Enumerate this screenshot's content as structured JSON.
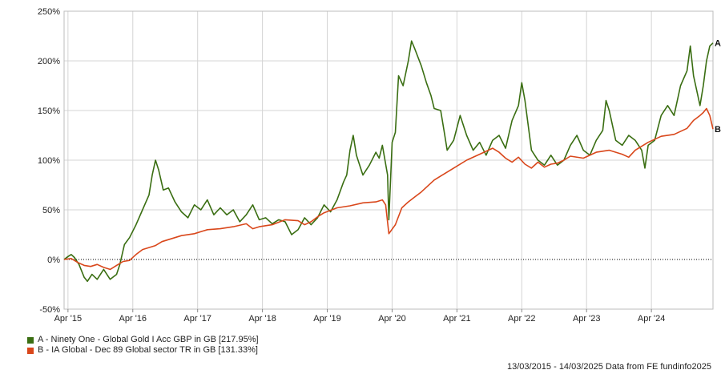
{
  "chart_data": {
    "type": "line",
    "ylim": [
      -50,
      250
    ],
    "y_ticks": [
      "250%",
      "200%",
      "150%",
      "100%",
      "50%",
      "0%",
      "-50%"
    ],
    "y_tick_values": [
      250,
      200,
      150,
      100,
      50,
      0,
      -50
    ],
    "x_ticks": [
      "Apr '15",
      "Apr '16",
      "Apr '17",
      "Apr '18",
      "Apr '19",
      "Apr '20",
      "Apr '21",
      "Apr '22",
      "Apr '23",
      "Apr '24"
    ],
    "x_tick_values": [
      2015.25,
      2016.25,
      2017.25,
      2018.25,
      2019.25,
      2020.25,
      2021.25,
      2022.25,
      2023.25,
      2024.25
    ],
    "xlim": [
      2015.19,
      2025.2
    ],
    "grid": true,
    "legend_position": "bottom-left",
    "series": [
      {
        "name": "A - Ninety One - Global Gold I Acc GBP in GB [217.95%]",
        "end_label": "A",
        "color": "#3a6e12",
        "points": [
          [
            2015.19,
            0
          ],
          [
            2015.25,
            3
          ],
          [
            2015.3,
            5
          ],
          [
            2015.35,
            2
          ],
          [
            2015.42,
            -5
          ],
          [
            2015.5,
            -18
          ],
          [
            2015.55,
            -22
          ],
          [
            2015.62,
            -15
          ],
          [
            2015.7,
            -20
          ],
          [
            2015.8,
            -10
          ],
          [
            2015.9,
            -20
          ],
          [
            2016.0,
            -15
          ],
          [
            2016.05,
            -5
          ],
          [
            2016.12,
            15
          ],
          [
            2016.2,
            22
          ],
          [
            2016.3,
            35
          ],
          [
            2016.4,
            50
          ],
          [
            2016.5,
            65
          ],
          [
            2016.55,
            85
          ],
          [
            2016.6,
            100
          ],
          [
            2016.65,
            90
          ],
          [
            2016.72,
            70
          ],
          [
            2016.8,
            72
          ],
          [
            2016.9,
            58
          ],
          [
            2017.0,
            48
          ],
          [
            2017.1,
            42
          ],
          [
            2017.2,
            55
          ],
          [
            2017.3,
            50
          ],
          [
            2017.4,
            60
          ],
          [
            2017.5,
            45
          ],
          [
            2017.6,
            52
          ],
          [
            2017.7,
            45
          ],
          [
            2017.8,
            50
          ],
          [
            2017.9,
            38
          ],
          [
            2018.0,
            45
          ],
          [
            2018.1,
            55
          ],
          [
            2018.2,
            40
          ],
          [
            2018.3,
            42
          ],
          [
            2018.4,
            36
          ],
          [
            2018.5,
            40
          ],
          [
            2018.6,
            38
          ],
          [
            2018.7,
            25
          ],
          [
            2018.8,
            30
          ],
          [
            2018.9,
            42
          ],
          [
            2019.0,
            35
          ],
          [
            2019.1,
            42
          ],
          [
            2019.2,
            55
          ],
          [
            2019.3,
            48
          ],
          [
            2019.4,
            60
          ],
          [
            2019.5,
            78
          ],
          [
            2019.55,
            85
          ],
          [
            2019.6,
            110
          ],
          [
            2019.65,
            125
          ],
          [
            2019.7,
            105
          ],
          [
            2019.8,
            85
          ],
          [
            2019.9,
            95
          ],
          [
            2020.0,
            108
          ],
          [
            2020.05,
            102
          ],
          [
            2020.1,
            115
          ],
          [
            2020.18,
            85
          ],
          [
            2020.2,
            40
          ],
          [
            2020.25,
            118
          ],
          [
            2020.3,
            128
          ],
          [
            2020.35,
            185
          ],
          [
            2020.42,
            175
          ],
          [
            2020.5,
            200
          ],
          [
            2020.55,
            220
          ],
          [
            2020.6,
            212
          ],
          [
            2020.7,
            195
          ],
          [
            2020.78,
            178
          ],
          [
            2020.85,
            165
          ],
          [
            2020.9,
            152
          ],
          [
            2021.0,
            150
          ],
          [
            2021.05,
            130
          ],
          [
            2021.1,
            110
          ],
          [
            2021.2,
            120
          ],
          [
            2021.3,
            145
          ],
          [
            2021.4,
            125
          ],
          [
            2021.5,
            110
          ],
          [
            2021.6,
            118
          ],
          [
            2021.7,
            105
          ],
          [
            2021.8,
            120
          ],
          [
            2021.9,
            125
          ],
          [
            2022.0,
            112
          ],
          [
            2022.1,
            140
          ],
          [
            2022.2,
            155
          ],
          [
            2022.25,
            178
          ],
          [
            2022.3,
            160
          ],
          [
            2022.4,
            110
          ],
          [
            2022.5,
            100
          ],
          [
            2022.6,
            95
          ],
          [
            2022.7,
            105
          ],
          [
            2022.8,
            95
          ],
          [
            2022.9,
            100
          ],
          [
            2023.0,
            115
          ],
          [
            2023.1,
            125
          ],
          [
            2023.2,
            110
          ],
          [
            2023.3,
            105
          ],
          [
            2023.4,
            120
          ],
          [
            2023.5,
            130
          ],
          [
            2023.55,
            160
          ],
          [
            2023.6,
            150
          ],
          [
            2023.7,
            120
          ],
          [
            2023.8,
            115
          ],
          [
            2023.9,
            125
          ],
          [
            2024.0,
            120
          ],
          [
            2024.1,
            110
          ],
          [
            2024.15,
            92
          ],
          [
            2024.2,
            115
          ],
          [
            2024.3,
            120
          ],
          [
            2024.4,
            145
          ],
          [
            2024.5,
            155
          ],
          [
            2024.6,
            145
          ],
          [
            2024.7,
            175
          ],
          [
            2024.8,
            190
          ],
          [
            2024.85,
            215
          ],
          [
            2024.9,
            185
          ],
          [
            2025.0,
            155
          ],
          [
            2025.05,
            175
          ],
          [
            2025.1,
            200
          ],
          [
            2025.15,
            215
          ],
          [
            2025.2,
            217.95
          ]
        ]
      },
      {
        "name": "B - IA Global - Dec 89 Global sector TR in GB [131.33%]",
        "end_label": "B",
        "color": "#d9471b",
        "points": [
          [
            2015.19,
            0
          ],
          [
            2015.3,
            1
          ],
          [
            2015.4,
            -3
          ],
          [
            2015.5,
            -6
          ],
          [
            2015.6,
            -7
          ],
          [
            2015.7,
            -5
          ],
          [
            2015.8,
            -8
          ],
          [
            2015.9,
            -10
          ],
          [
            2016.0,
            -6
          ],
          [
            2016.1,
            -2
          ],
          [
            2016.2,
            -1
          ],
          [
            2016.3,
            5
          ],
          [
            2016.4,
            10
          ],
          [
            2016.5,
            12
          ],
          [
            2016.6,
            14
          ],
          [
            2016.7,
            18
          ],
          [
            2016.8,
            20
          ],
          [
            2016.9,
            22
          ],
          [
            2017.0,
            24
          ],
          [
            2017.2,
            26
          ],
          [
            2017.4,
            30
          ],
          [
            2017.6,
            31
          ],
          [
            2017.8,
            33
          ],
          [
            2018.0,
            36
          ],
          [
            2018.1,
            31
          ],
          [
            2018.2,
            33
          ],
          [
            2018.4,
            35
          ],
          [
            2018.6,
            40
          ],
          [
            2018.8,
            39
          ],
          [
            2018.9,
            35
          ],
          [
            2019.0,
            38
          ],
          [
            2019.1,
            43
          ],
          [
            2019.2,
            47
          ],
          [
            2019.4,
            52
          ],
          [
            2019.6,
            54
          ],
          [
            2019.8,
            57
          ],
          [
            2020.0,
            58
          ],
          [
            2020.1,
            60
          ],
          [
            2020.15,
            55
          ],
          [
            2020.2,
            26
          ],
          [
            2020.3,
            35
          ],
          [
            2020.4,
            52
          ],
          [
            2020.5,
            58
          ],
          [
            2020.6,
            63
          ],
          [
            2020.7,
            68
          ],
          [
            2020.8,
            74
          ],
          [
            2020.9,
            80
          ],
          [
            2021.0,
            84
          ],
          [
            2021.2,
            92
          ],
          [
            2021.4,
            100
          ],
          [
            2021.6,
            106
          ],
          [
            2021.8,
            112
          ],
          [
            2021.9,
            108
          ],
          [
            2022.0,
            102
          ],
          [
            2022.1,
            98
          ],
          [
            2022.2,
            103
          ],
          [
            2022.3,
            96
          ],
          [
            2022.4,
            92
          ],
          [
            2022.5,
            98
          ],
          [
            2022.6,
            93
          ],
          [
            2022.7,
            96
          ],
          [
            2022.8,
            97
          ],
          [
            2022.9,
            100
          ],
          [
            2023.0,
            104
          ],
          [
            2023.2,
            102
          ],
          [
            2023.4,
            108
          ],
          [
            2023.6,
            110
          ],
          [
            2023.8,
            106
          ],
          [
            2023.9,
            103
          ],
          [
            2024.0,
            110
          ],
          [
            2024.2,
            118
          ],
          [
            2024.4,
            124
          ],
          [
            2024.6,
            126
          ],
          [
            2024.8,
            132
          ],
          [
            2024.9,
            140
          ],
          [
            2025.0,
            145
          ],
          [
            2025.05,
            148
          ],
          [
            2025.1,
            152
          ],
          [
            2025.15,
            145
          ],
          [
            2025.2,
            131.33
          ]
        ]
      }
    ],
    "footer": "13/03/2015 - 14/03/2025 Data from FE fundinfo2025"
  }
}
